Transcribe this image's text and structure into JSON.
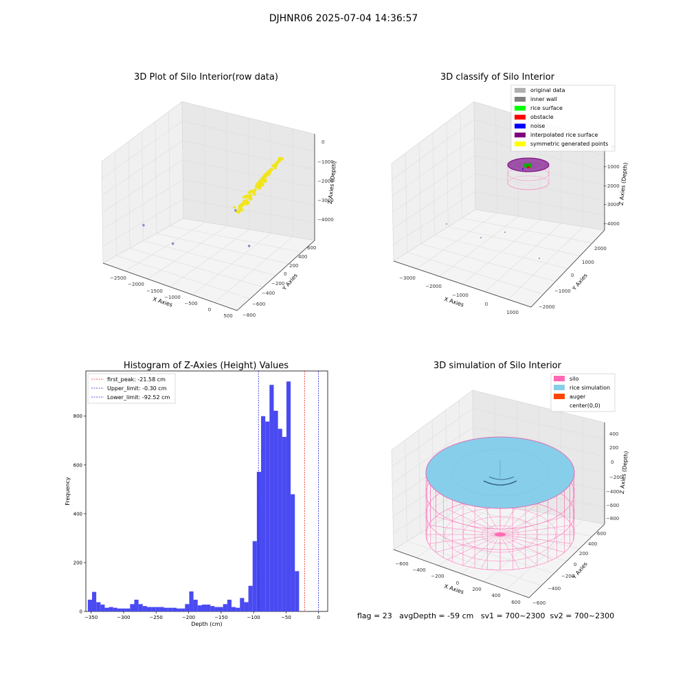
{
  "figure": {
    "suptitle": "DJHNR06 2025-07-04 14:36:57",
    "footer": "flag = 23   avgDepth = -59 cm   sv1 = 700~2300  sv2 = 700~2300"
  },
  "colors": {
    "raw_yellow": "#f0e51e",
    "hist_bar": "#4a4af2",
    "first_peak_line": "#e02020",
    "limit_line": "#1a1ad0",
    "silo_pink": "#ff69b4",
    "rice_blue": "#87ceeb",
    "auger": "#ff4500",
    "pane_gray": "#f2f2f2"
  },
  "chart_data": [
    {
      "type": "scatter",
      "projection": "3d",
      "title": "3D Plot of Silo Interior(row data)",
      "xlabel": "X Axies",
      "ylabel": "Y Axies",
      "zlabel": "Z Axies (Depth)",
      "x_ticks": [
        "−2500",
        "−2000",
        "−1500",
        "−1000",
        "−500",
        "0",
        "500"
      ],
      "y_ticks": [
        "−800",
        "−600",
        "−400",
        "−200",
        "0",
        "200",
        "400",
        "600"
      ],
      "z_ticks": [
        "−4000",
        "−3000",
        "−2000",
        "−1000",
        "0"
      ],
      "xlim": [
        -2800,
        600
      ],
      "ylim": [
        -850,
        700
      ],
      "zlim": [
        -4500,
        200
      ],
      "series": [
        {
          "color": "#f0e51e",
          "cluster": {
            "x_range": [
              -350,
              150
            ],
            "y_range": [
              -150,
              500
            ],
            "z_range": [
              -2200,
              -500
            ],
            "count": 90
          },
          "points": [
            {
              "x": -700,
              "y": 300,
              "z": -2600
            },
            {
              "x": -600,
              "y": 250,
              "z": -2400
            },
            {
              "x": -800,
              "y": 200,
              "z": -2900
            }
          ]
        },
        {
          "color": "#8888cc",
          "points": [
            {
              "x": -2600,
              "y": -200,
              "z": -4000
            },
            {
              "x": -1600,
              "y": -400,
              "z": -3800
            },
            {
              "x": -300,
              "y": 100,
              "z": -4100
            },
            {
              "x": -900,
              "y": 300,
              "z": -3300
            }
          ]
        }
      ]
    },
    {
      "type": "scatter",
      "projection": "3d",
      "title": "3D classify of Silo Interior",
      "xlabel": "X Axies",
      "ylabel": "Y Axies",
      "zlabel": "Z Axies (Depth)",
      "x_ticks": [
        "−3000",
        "−2000",
        "−1000",
        "0",
        "1000"
      ],
      "y_ticks": [
        "−2000",
        "−1000",
        "0",
        "1000",
        "2000"
      ],
      "z_ticks": [
        "−4000",
        "−3000",
        "−2000",
        "−1000",
        "0"
      ],
      "legend": {
        "position": "upper-right",
        "entries": [
          {
            "label": "original data",
            "color": "#b0b0b0"
          },
          {
            "label": "inner wall",
            "color": "#808080"
          },
          {
            "label": "rice surface",
            "color": "#00ff00"
          },
          {
            "label": "obstacle",
            "color": "#ff0000"
          },
          {
            "label": "noise",
            "color": "#0000ff"
          },
          {
            "label": "interpolated rice surface",
            "color": "#800080"
          },
          {
            "label": "symmetric generated points",
            "color": "#ffff00"
          }
        ]
      }
    },
    {
      "type": "bar",
      "title": "Histogram of Z-Axies (Height) Values",
      "xlabel": "Depth (cm)",
      "ylabel": "Frequency",
      "xlim": [
        -358,
        14
      ],
      "ylim": [
        0,
        985
      ],
      "x_ticks": [
        -350,
        -300,
        -250,
        -200,
        -150,
        -100,
        -50,
        0
      ],
      "y_ticks": [
        0,
        200,
        400,
        600,
        800
      ],
      "bin_start": -355,
      "bin_width": 6.5,
      "values": [
        48,
        80,
        38,
        28,
        15,
        18,
        15,
        12,
        12,
        12,
        30,
        48,
        30,
        22,
        18,
        18,
        18,
        18,
        15,
        15,
        15,
        12,
        12,
        30,
        82,
        48,
        25,
        28,
        28,
        22,
        18,
        18,
        30,
        48,
        18,
        15,
        55,
        38,
        105,
        288,
        572,
        800,
        778,
        928,
        822,
        748,
        715,
        942,
        480,
        165
      ],
      "lines": [
        {
          "label": "first_peak: -21.58 cm",
          "x": -21.58,
          "color": "#e02020"
        },
        {
          "label": "Upper_limit: -0.30 cm",
          "x": -0.3,
          "color": "#1a1ad0"
        },
        {
          "label": "Lower_limit: -92.52 cm",
          "x": -92.52,
          "color": "#1a1ad0"
        }
      ],
      "legend": {
        "position": "upper-left"
      }
    },
    {
      "type": "scatter",
      "projection": "3d",
      "title": "3D simulation of Silo Interior",
      "xlabel": "X Axies",
      "ylabel": "Y Axies",
      "zlabel": "Z Axies (Depth)",
      "x_ticks": [
        "−600",
        "−400",
        "−200",
        "0",
        "200",
        "400",
        "600"
      ],
      "y_ticks": [
        "−600",
        "−400",
        "−200",
        "0",
        "200",
        "400",
        "600"
      ],
      "z_ticks": [
        "−800",
        "−600",
        "−400",
        "−200",
        "0",
        "200",
        "400"
      ],
      "legend": {
        "position": "upper-right",
        "entries": [
          {
            "label": "silo",
            "color": "#ff69b4"
          },
          {
            "label": "rice simulation",
            "color": "#87ceeb"
          },
          {
            "label": "auger",
            "color": "#ff4500"
          },
          {
            "label": "center(0,0)",
            "color": "#ffffff"
          }
        ]
      }
    }
  ]
}
